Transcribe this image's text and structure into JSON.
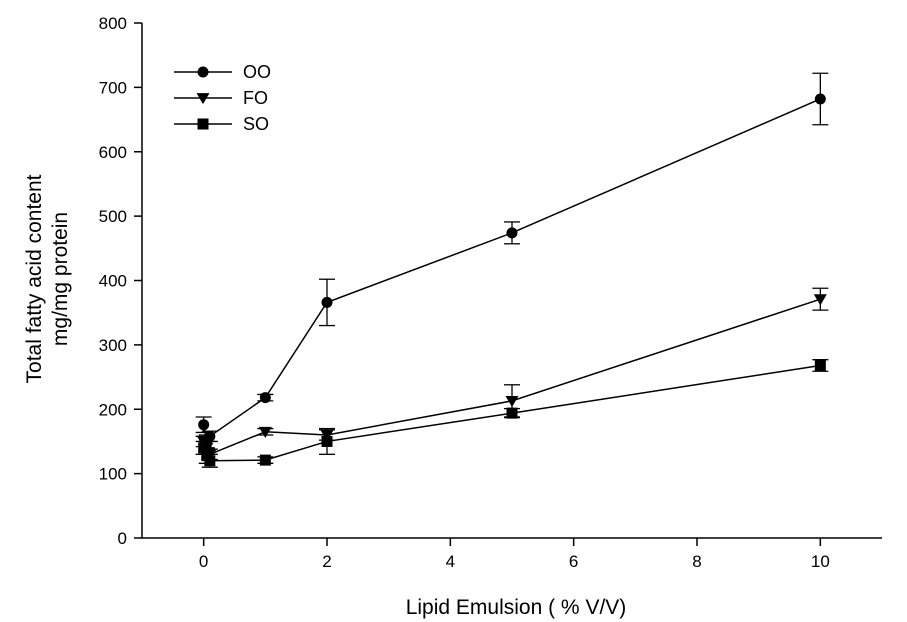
{
  "chart_data": {
    "type": "line",
    "xlabel": "Lipid Emulsion ( % V/V)",
    "ylabel_lines": [
      "Total fatty acid content",
      "mg/mg protein"
    ],
    "xlim": [
      -1,
      11
    ],
    "ylim": [
      0,
      800
    ],
    "x_ticks": [
      0,
      2,
      4,
      6,
      8,
      10
    ],
    "y_ticks": [
      0,
      100,
      200,
      300,
      400,
      500,
      600,
      700,
      800
    ],
    "grid": false,
    "legend_position": "top-left",
    "series": [
      {
        "name": "OO",
        "marker": "circle",
        "x": [
          0,
          0.05,
          0.1,
          1,
          2,
          5,
          10
        ],
        "y": [
          176,
          150,
          158,
          218,
          366,
          474,
          682
        ],
        "err": [
          12,
          10,
          8,
          5,
          36,
          17,
          40
        ]
      },
      {
        "name": "FO",
        "marker": "triangle-down",
        "x": [
          0,
          0.05,
          0.1,
          1,
          2,
          5,
          10
        ],
        "y": [
          150,
          140,
          130,
          165,
          160,
          213,
          371
        ],
        "err": [
          8,
          10,
          8,
          5,
          8,
          25,
          17
        ]
      },
      {
        "name": "SO",
        "marker": "square",
        "x": [
          0,
          0.05,
          0.1,
          1,
          2,
          5,
          10
        ],
        "y": [
          140,
          128,
          120,
          121,
          150,
          194,
          268
        ],
        "err": [
          10,
          12,
          10,
          5,
          20,
          7,
          9
        ]
      }
    ],
    "colors": {
      "line": "#000000",
      "marker": "#000000",
      "background": "#ffffff"
    }
  }
}
